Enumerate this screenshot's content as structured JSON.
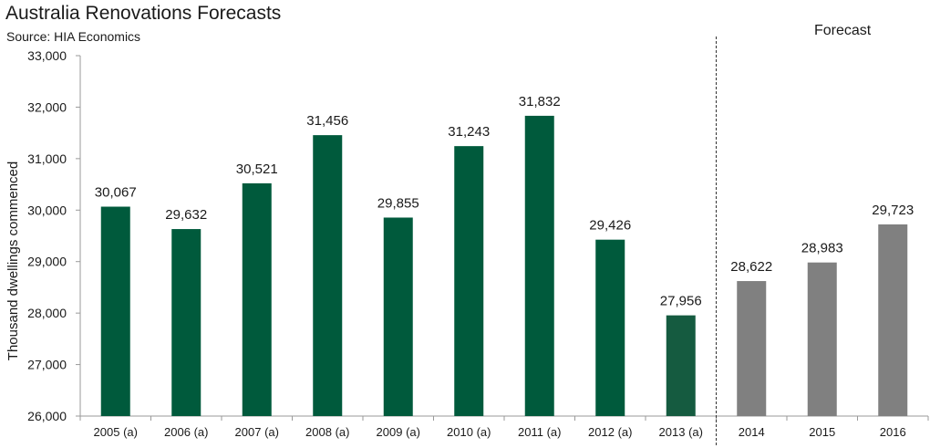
{
  "header": {
    "title": "Australia Renovations Forecasts",
    "source": "Source: HIA Economics",
    "forecast_label": "Forecast"
  },
  "chart_data": {
    "type": "bar",
    "title": "Australia Renovations Forecasts",
    "subtitle": "Source: HIA Economics",
    "xlabel": "",
    "ylabel": "Thousand dwellings commenced",
    "ylim": [
      26000,
      33000
    ],
    "yticks": [
      26000,
      27000,
      28000,
      29000,
      30000,
      31000,
      32000,
      33000
    ],
    "ytick_labels": [
      "26,000",
      "27,000",
      "28,000",
      "29,000",
      "30,000",
      "31,000",
      "32,000",
      "33,000"
    ],
    "categories": [
      "2005 (a)",
      "2006 (a)",
      "2007 (a)",
      "2008 (a)",
      "2009 (a)",
      "2010 (a)",
      "2011 (a)",
      "2012 (a)",
      "2013 (a)",
      "2014",
      "2015",
      "2016"
    ],
    "values": [
      30067,
      29632,
      30521,
      31456,
      29855,
      31243,
      31832,
      29426,
      27956,
      28622,
      28983,
      29723
    ],
    "value_labels": [
      "30,067",
      "29,632",
      "30,521",
      "31,456",
      "29,855",
      "31,243",
      "31,832",
      "29,426",
      "27,956",
      "28,622",
      "28,983",
      "29,723"
    ],
    "bar_colors": [
      "#005a3c",
      "#005a3c",
      "#005a3c",
      "#005a3c",
      "#005a3c",
      "#005a3c",
      "#005a3c",
      "#005a3c",
      "#155b40",
      "#808080",
      "#808080",
      "#808080"
    ],
    "forecast_start_index": 9,
    "grid": false,
    "legend": "none"
  }
}
